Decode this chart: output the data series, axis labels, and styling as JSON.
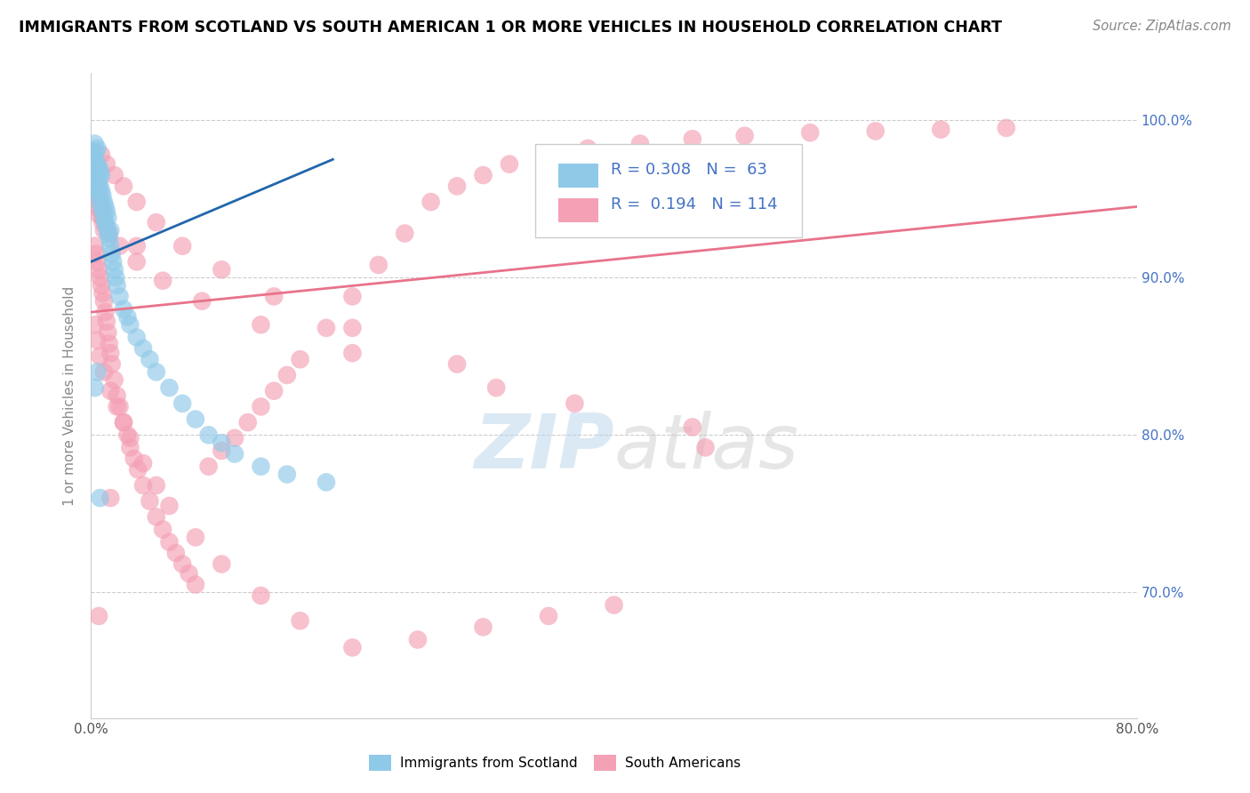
{
  "title": "IMMIGRANTS FROM SCOTLAND VS SOUTH AMERICAN 1 OR MORE VEHICLES IN HOUSEHOLD CORRELATION CHART",
  "source": "Source: ZipAtlas.com",
  "ylabel": "1 or more Vehicles in Household",
  "legend_label1": "Immigrants from Scotland",
  "legend_label2": "South Americans",
  "R1": 0.308,
  "N1": 63,
  "R2": 0.194,
  "N2": 114,
  "xlim": [
    0.0,
    0.8
  ],
  "ylim": [
    0.62,
    1.03
  ],
  "color_scotland": "#8fc9e8",
  "color_south_american": "#f4a0b5",
  "color_line_scotland": "#2166ac",
  "color_line_south_american": "#e8738a",
  "color_text_blue": "#4472c4",
  "scotland_x": [
    0.001,
    0.001,
    0.002,
    0.002,
    0.002,
    0.003,
    0.003,
    0.003,
    0.003,
    0.004,
    0.004,
    0.004,
    0.005,
    0.005,
    0.005,
    0.005,
    0.006,
    0.006,
    0.006,
    0.007,
    0.007,
    0.007,
    0.008,
    0.008,
    0.008,
    0.009,
    0.009,
    0.01,
    0.01,
    0.011,
    0.011,
    0.012,
    0.012,
    0.013,
    0.013,
    0.014,
    0.015,
    0.015,
    0.016,
    0.017,
    0.018,
    0.019,
    0.02,
    0.022,
    0.025,
    0.028,
    0.03,
    0.035,
    0.04,
    0.045,
    0.05,
    0.06,
    0.07,
    0.08,
    0.09,
    0.1,
    0.11,
    0.13,
    0.15,
    0.18,
    0.003,
    0.005,
    0.007
  ],
  "scotland_y": [
    0.96,
    0.97,
    0.965,
    0.975,
    0.98,
    0.958,
    0.968,
    0.975,
    0.985,
    0.96,
    0.97,
    0.98,
    0.955,
    0.965,
    0.972,
    0.982,
    0.952,
    0.962,
    0.97,
    0.948,
    0.958,
    0.968,
    0.945,
    0.955,
    0.965,
    0.942,
    0.952,
    0.938,
    0.948,
    0.935,
    0.945,
    0.932,
    0.942,
    0.928,
    0.938,
    0.925,
    0.92,
    0.93,
    0.915,
    0.91,
    0.905,
    0.9,
    0.895,
    0.888,
    0.88,
    0.875,
    0.87,
    0.862,
    0.855,
    0.848,
    0.84,
    0.83,
    0.82,
    0.81,
    0.8,
    0.795,
    0.788,
    0.78,
    0.775,
    0.77,
    0.83,
    0.84,
    0.76
  ],
  "south_american_x": [
    0.002,
    0.003,
    0.003,
    0.004,
    0.004,
    0.005,
    0.005,
    0.006,
    0.006,
    0.007,
    0.007,
    0.008,
    0.008,
    0.009,
    0.009,
    0.01,
    0.01,
    0.011,
    0.012,
    0.013,
    0.014,
    0.015,
    0.016,
    0.018,
    0.02,
    0.022,
    0.025,
    0.028,
    0.03,
    0.033,
    0.036,
    0.04,
    0.045,
    0.05,
    0.055,
    0.06,
    0.065,
    0.07,
    0.075,
    0.08,
    0.09,
    0.1,
    0.11,
    0.12,
    0.13,
    0.14,
    0.15,
    0.16,
    0.18,
    0.2,
    0.22,
    0.24,
    0.26,
    0.28,
    0.3,
    0.32,
    0.35,
    0.38,
    0.42,
    0.46,
    0.5,
    0.55,
    0.6,
    0.65,
    0.7,
    0.003,
    0.005,
    0.007,
    0.01,
    0.015,
    0.02,
    0.025,
    0.03,
    0.04,
    0.05,
    0.06,
    0.08,
    0.1,
    0.13,
    0.16,
    0.2,
    0.25,
    0.3,
    0.35,
    0.4,
    0.008,
    0.012,
    0.018,
    0.025,
    0.035,
    0.05,
    0.07,
    0.1,
    0.14,
    0.2,
    0.28,
    0.37,
    0.47,
    0.002,
    0.004,
    0.006,
    0.009,
    0.014,
    0.022,
    0.035,
    0.055,
    0.085,
    0.13,
    0.2,
    0.31,
    0.46,
    0.006,
    0.015,
    0.035
  ],
  "south_american_y": [
    0.96,
    0.92,
    0.97,
    0.915,
    0.965,
    0.91,
    0.958,
    0.905,
    0.952,
    0.9,
    0.948,
    0.895,
    0.942,
    0.89,
    0.938,
    0.885,
    0.93,
    0.878,
    0.872,
    0.865,
    0.858,
    0.852,
    0.845,
    0.835,
    0.825,
    0.818,
    0.808,
    0.8,
    0.792,
    0.785,
    0.778,
    0.768,
    0.758,
    0.748,
    0.74,
    0.732,
    0.725,
    0.718,
    0.712,
    0.705,
    0.78,
    0.79,
    0.798,
    0.808,
    0.818,
    0.828,
    0.838,
    0.848,
    0.868,
    0.888,
    0.908,
    0.928,
    0.948,
    0.958,
    0.965,
    0.972,
    0.978,
    0.982,
    0.985,
    0.988,
    0.99,
    0.992,
    0.993,
    0.994,
    0.995,
    0.87,
    0.86,
    0.85,
    0.84,
    0.828,
    0.818,
    0.808,
    0.798,
    0.782,
    0.768,
    0.755,
    0.735,
    0.718,
    0.698,
    0.682,
    0.665,
    0.67,
    0.678,
    0.685,
    0.692,
    0.978,
    0.972,
    0.965,
    0.958,
    0.948,
    0.935,
    0.92,
    0.905,
    0.888,
    0.868,
    0.845,
    0.82,
    0.792,
    0.95,
    0.945,
    0.94,
    0.935,
    0.928,
    0.92,
    0.91,
    0.898,
    0.885,
    0.87,
    0.852,
    0.83,
    0.805,
    0.685,
    0.76,
    0.92
  ]
}
